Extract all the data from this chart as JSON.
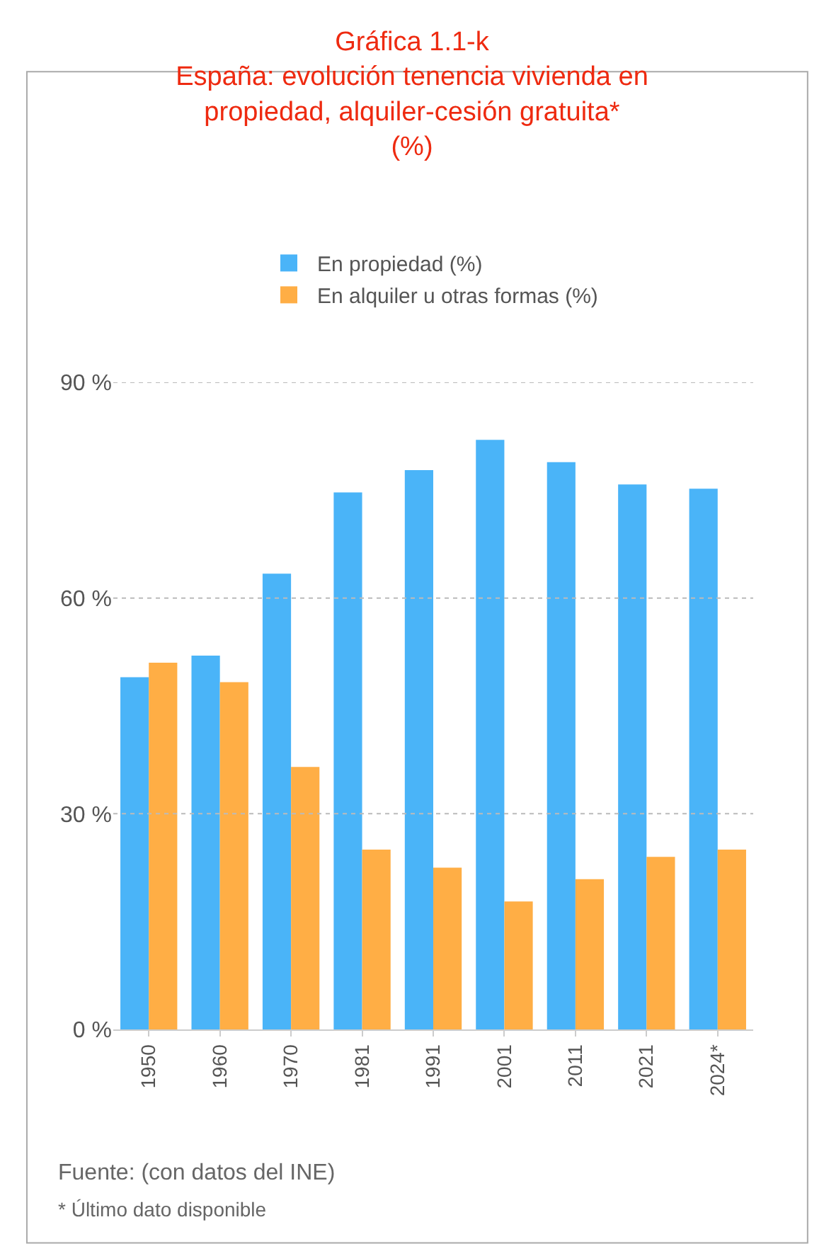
{
  "chart_data": {
    "type": "bar",
    "title": "Gráfica 1.1-k\nEspaña: evolución tenencia vivienda en\npropiedad, alquiler-cesión gratuita*\n(%)",
    "categories": [
      "1950",
      "1960",
      "1970",
      "1981",
      "1991",
      "2001",
      "2011",
      "2021",
      "2024*"
    ],
    "series": [
      {
        "name": "En propiedad (%)",
        "color": "#4ab4f8",
        "values": [
          49,
          52,
          63.4,
          74.7,
          77.8,
          82,
          78.9,
          75.8,
          75.2
        ]
      },
      {
        "name": "En alquiler u otras formas (%)",
        "color": "#ffae45",
        "values": [
          51,
          48.3,
          36.5,
          25,
          22.5,
          17.8,
          20.9,
          24,
          25
        ]
      }
    ],
    "ylim": [
      0,
      90
    ],
    "yticks": [
      {
        "value": 0,
        "label": "0 %"
      },
      {
        "value": 30,
        "label": "30 %"
      },
      {
        "value": 60,
        "label": "60 %"
      },
      {
        "value": 90,
        "label": "90 %"
      }
    ],
    "grid": "y",
    "legend": "top",
    "annotations": [
      "Fuente: (con datos del INE)",
      "* Último dato disponible"
    ]
  }
}
